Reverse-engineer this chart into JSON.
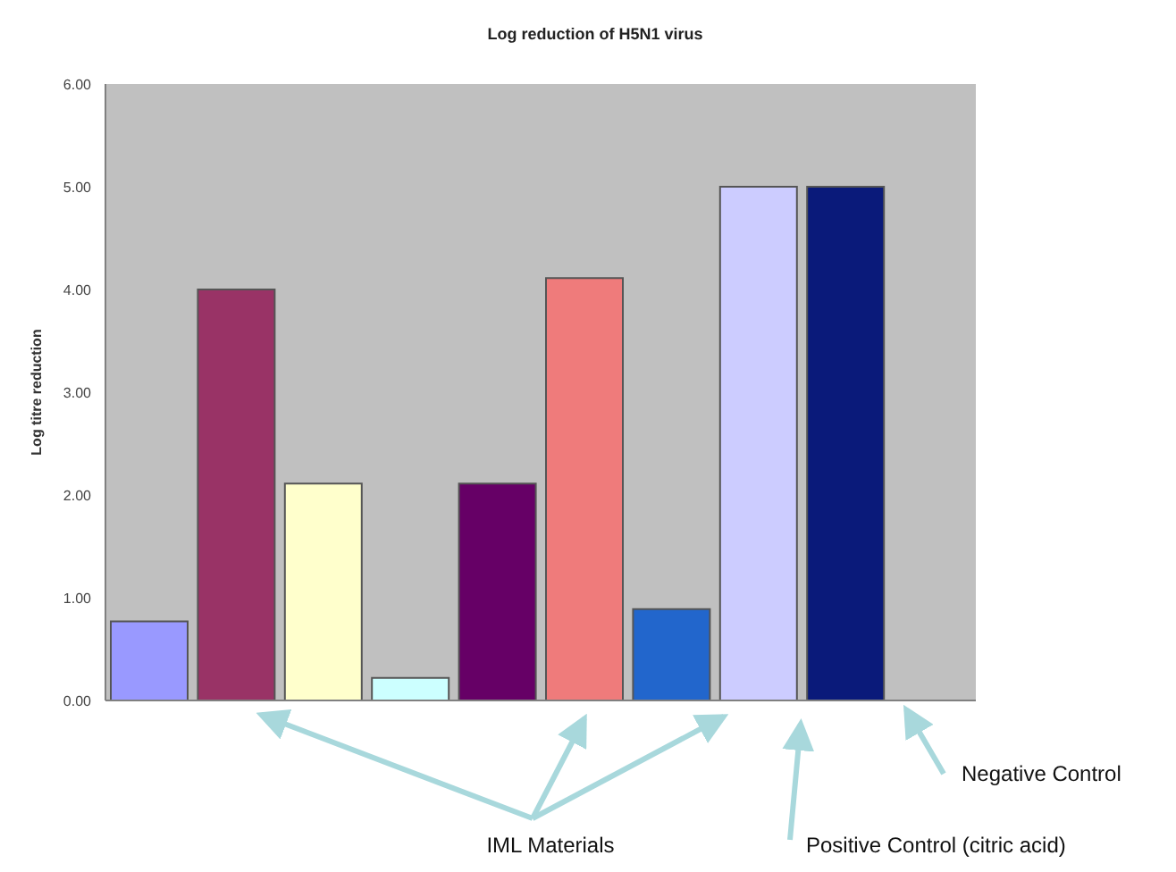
{
  "chart_data": {
    "type": "bar",
    "title": "Log reduction of H5N1 virus",
    "ylabel": "Log titre reduction",
    "categories": [
      null,
      null,
      null,
      null,
      null,
      null,
      null,
      null,
      null,
      null
    ],
    "values": [
      0.77,
      4.0,
      2.11,
      0.22,
      2.11,
      4.11,
      0.89,
      5.0,
      5.0,
      0
    ],
    "colors": [
      "#9999ff",
      "#993366",
      "#ffffcc",
      "#ccffff",
      "#660066",
      "#ef7b7b",
      "#2266cc",
      "#ccccff",
      "#0a1a7a",
      "#c0c0c0"
    ],
    "ylim": [
      0,
      6
    ],
    "yticks": [
      {
        "value": 0,
        "label": "0.00"
      },
      {
        "value": 1,
        "label": "1.00"
      },
      {
        "value": 2,
        "label": "2.00"
      },
      {
        "value": 3,
        "label": "3.00"
      },
      {
        "value": 4,
        "label": "4.00"
      },
      {
        "value": 5,
        "label": "5.00"
      },
      {
        "value": 6,
        "label": "6.00"
      }
    ],
    "grid": false,
    "annotations": [
      {
        "text": "IML Materials"
      },
      {
        "text": "Positive Control (citric acid)"
      },
      {
        "text": "Negative Control"
      }
    ]
  }
}
